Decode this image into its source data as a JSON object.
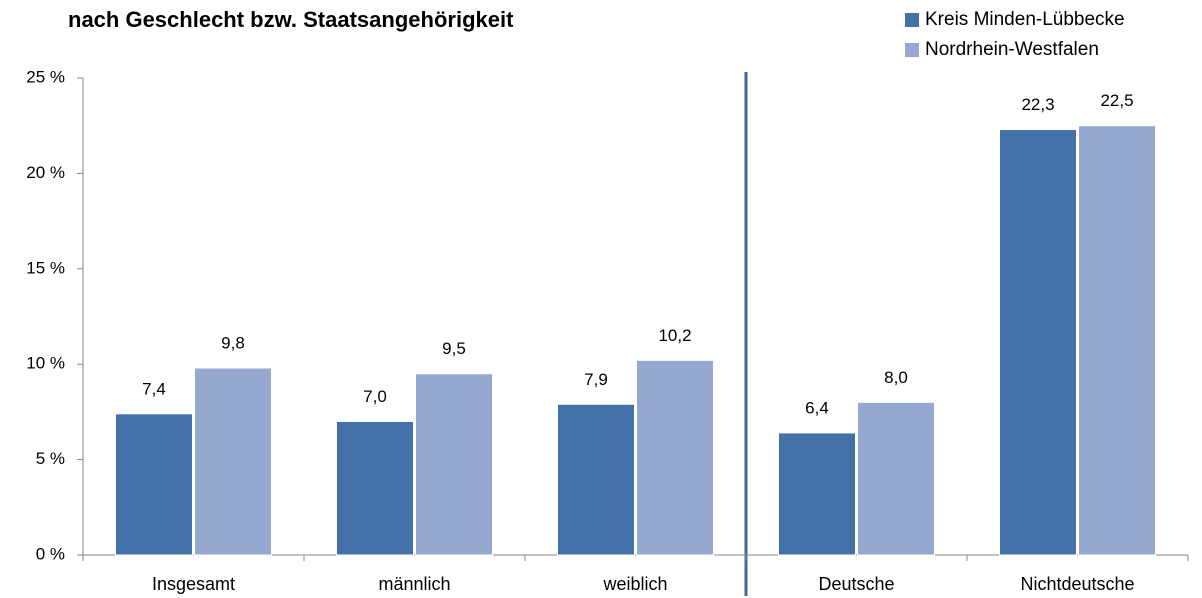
{
  "chart_data": {
    "type": "bar",
    "title": "nach Geschlecht bzw. Staatsangehörigkeit",
    "categories": [
      "Insgesamt",
      "männlich",
      "weiblich",
      "Deutsche",
      "Nichtdeutsche"
    ],
    "series": [
      {
        "name": "Kreis Minden-Lübbecke",
        "color": "#4472a8",
        "values": [
          7.4,
          7.0,
          7.9,
          6.4,
          22.3
        ],
        "value_labels": [
          "7,4",
          "7,0",
          "7,9",
          "6,4",
          "22,3"
        ]
      },
      {
        "name": "Nordrhein-Westfalen",
        "color": "#95a9d0",
        "values": [
          9.8,
          9.5,
          10.2,
          8.0,
          22.5
        ],
        "value_labels": [
          "9,8",
          "9,5",
          "10,2",
          "8,0",
          "22,5"
        ]
      }
    ],
    "ylim": [
      0,
      25
    ],
    "yticks": [
      {
        "value": 0,
        "label": "0 %"
      },
      {
        "value": 5,
        "label": "5 %"
      },
      {
        "value": 10,
        "label": "10 %"
      },
      {
        "value": 15,
        "label": "15 %"
      },
      {
        "value": 20,
        "label": "20 %"
      },
      {
        "value": 25,
        "label": "25 %"
      }
    ],
    "legend": "top-right"
  }
}
